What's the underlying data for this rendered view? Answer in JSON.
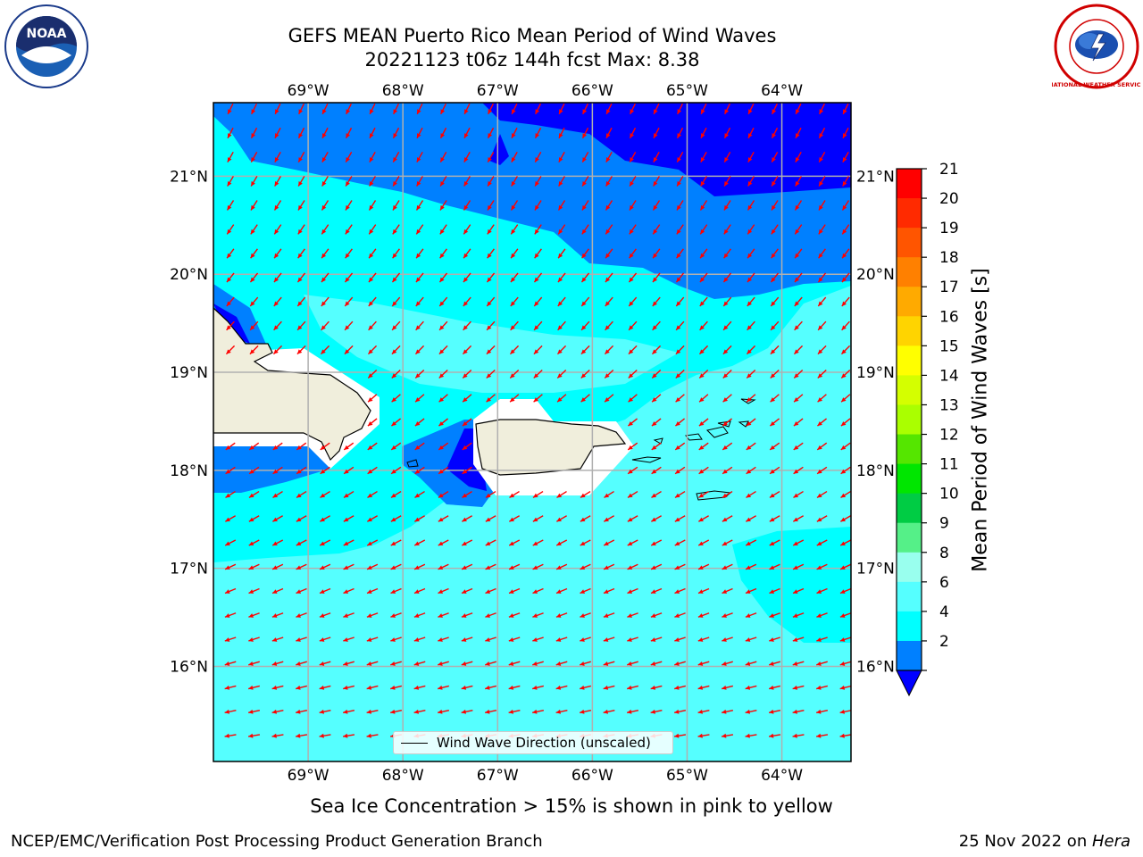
{
  "title_line1": "GEFS MEAN Puerto Rico Mean Period of Wind Waves",
  "title_line2": "20221123 t06z 144h fcst   Max: 8.38",
  "lon_labels": [
    "69°W",
    "68°W",
    "67°W",
    "66°W",
    "65°W",
    "64°W"
  ],
  "lat_labels": [
    "21°N",
    "20°N",
    "19°N",
    "18°N",
    "17°N",
    "16°N"
  ],
  "legend_label": "Wind Wave Direction (unscaled)",
  "caption": "Sea Ice Concentration > 15% is shown in pink to yellow",
  "footer_left": "NCEP/EMC/Verification Post Processing Product Generation Branch",
  "footer_right_prefix": "25 Nov 2022 on ",
  "footer_right_host": "Hera",
  "colorbar": {
    "label": "Mean Period of Wind Waves [s]",
    "ticks": [
      "21",
      "20",
      "19",
      "18",
      "17",
      "16",
      "15",
      "14",
      "13",
      "12",
      "11",
      "10",
      "9",
      "8",
      "6",
      "4",
      "2"
    ],
    "colors": [
      "#ff0000",
      "#ff2a00",
      "#ff5500",
      "#ff8000",
      "#ffaa00",
      "#ffd400",
      "#ffff00",
      "#d4ff00",
      "#aaff00",
      "#55e600",
      "#00e600",
      "#00cc44",
      "#55f088",
      "#99ffee",
      "#55ffff",
      "#00ffff",
      "#0080ff"
    ],
    "under_color": "#0000ff"
  },
  "map_colors": {
    "dark_blue": "#0000ff",
    "medium_blue": "#0080ff",
    "cyan": "#00ffff",
    "light_cyan": "#55ffff",
    "land": "#f0eedc",
    "arrow": "#ff0000"
  },
  "logos": {
    "left": "NOAA",
    "right": "NATIONAL WEATHER SERVICE"
  }
}
